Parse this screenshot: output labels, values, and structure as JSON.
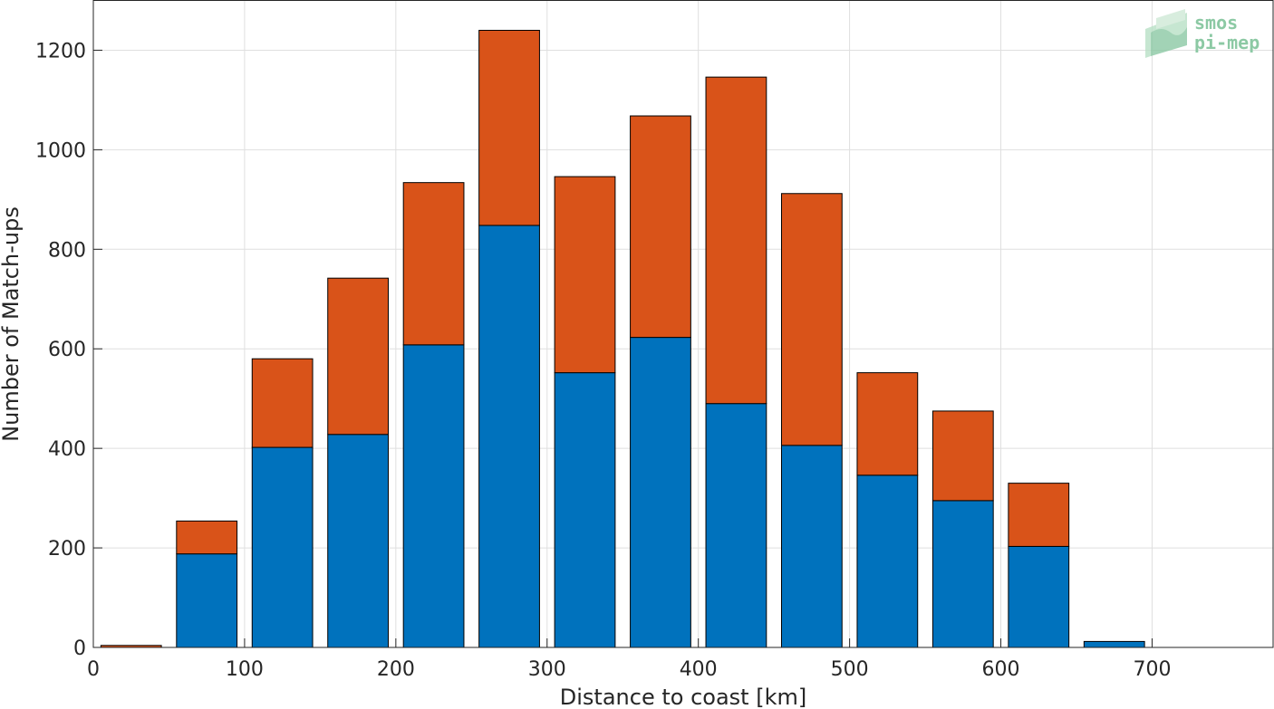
{
  "chart_data": {
    "type": "bar",
    "stacked": true,
    "title": "",
    "xlabel": "Distance to coast [km]",
    "ylabel": "Number of Match-ups",
    "xlim": [
      0,
      780
    ],
    "ylim": [
      0,
      1300
    ],
    "grid": true,
    "x_ticks": [
      0,
      100,
      200,
      300,
      400,
      500,
      600,
      700
    ],
    "y_ticks": [
      0,
      200,
      400,
      600,
      800,
      1000,
      1200
    ],
    "bar_width_km": 40,
    "x": [
      25,
      75,
      125,
      175,
      225,
      275,
      325,
      375,
      425,
      475,
      525,
      575,
      625,
      675
    ],
    "series": [
      {
        "color": "#0072bd",
        "values": [
          0,
          188,
          402,
          428,
          608,
          848,
          552,
          623,
          490,
          406,
          346,
          295,
          203,
          12
        ]
      },
      {
        "color": "#d95319",
        "values": [
          4,
          66,
          178,
          314,
          326,
          392,
          394,
          445,
          656,
          506,
          206,
          180,
          127,
          0
        ]
      }
    ]
  },
  "logo": {
    "line1": "smos",
    "line2": "pi-mep",
    "color": "#8cc9a4"
  }
}
